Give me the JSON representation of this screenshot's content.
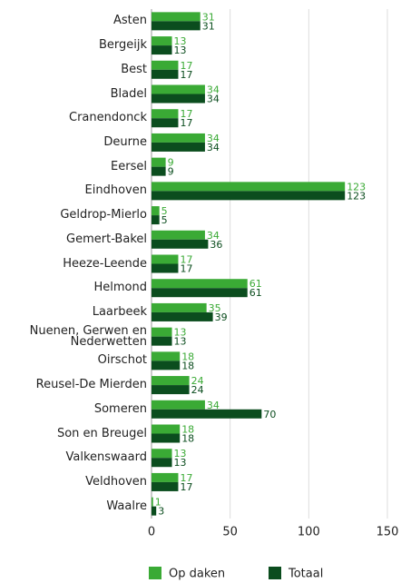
{
  "chart_data": {
    "type": "bar",
    "orientation": "horizontal",
    "categories": [
      "Asten",
      "Bergeijk",
      "Best",
      "Bladel",
      "Cranendonck",
      "Deurne",
      "Eersel",
      "Eindhoven",
      "Geldrop-Mierlo",
      "Gemert-Bakel",
      "Heeze-Leende",
      "Helmond",
      "Laarbeek",
      "Nuenen, Gerwen en Nederwetten",
      "Oirschot",
      "Reusel-De Mierden",
      "Someren",
      "Son en Breugel",
      "Valkenswaard",
      "Veldhoven",
      "Waalre"
    ],
    "series": [
      {
        "name": "Op daken",
        "color": "#3aaa35",
        "values": [
          31,
          13,
          17,
          34,
          17,
          34,
          9,
          123,
          5,
          34,
          17,
          61,
          35,
          13,
          18,
          24,
          34,
          18,
          13,
          17,
          1
        ]
      },
      {
        "name": "Totaal",
        "color": "#0b4d1e",
        "values": [
          31,
          13,
          17,
          34,
          17,
          34,
          9,
          123,
          5,
          36,
          17,
          61,
          39,
          13,
          18,
          24,
          70,
          18,
          13,
          17,
          3
        ]
      }
    ],
    "xlim": [
      0,
      150
    ],
    "xticks": [
      0,
      50,
      100,
      150
    ],
    "grid": true,
    "legend": "bottom"
  }
}
